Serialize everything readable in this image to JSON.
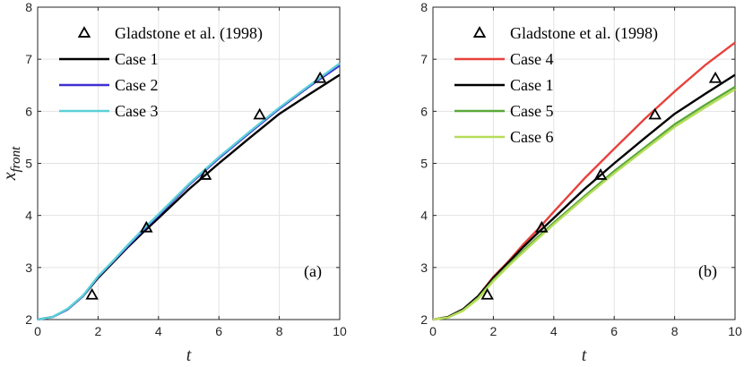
{
  "chart_data": [
    {
      "type": "line",
      "panel_label": "(a)",
      "xlabel": "t",
      "ylabel_base": "x",
      "ylabel_sub": "front",
      "xlim": [
        0,
        10
      ],
      "ylim": [
        2,
        8
      ],
      "xticks": [
        0,
        2,
        4,
        6,
        8,
        10
      ],
      "yticks": [
        2,
        3,
        4,
        5,
        6,
        7,
        8
      ],
      "grid": true,
      "legend_position": "top-left",
      "markers": {
        "name": "Gladstone et al. (1998)",
        "symbol": "triangle",
        "points": [
          [
            1.8,
            2.47
          ],
          [
            3.6,
            3.76
          ],
          [
            5.55,
            4.77
          ],
          [
            7.35,
            5.93
          ],
          [
            9.35,
            6.63
          ]
        ]
      },
      "series": [
        {
          "name": "Case 1",
          "color": "#000000",
          "points": [
            [
              0,
              2.0
            ],
            [
              0.5,
              2.05
            ],
            [
              1,
              2.2
            ],
            [
              1.5,
              2.45
            ],
            [
              2,
              2.8
            ],
            [
              2.5,
              3.1
            ],
            [
              3,
              3.4
            ],
            [
              3.5,
              3.68
            ],
            [
              4,
              3.95
            ],
            [
              5,
              4.5
            ],
            [
              6,
              5.0
            ],
            [
              7,
              5.48
            ],
            [
              8,
              5.95
            ],
            [
              9,
              6.33
            ],
            [
              10,
              6.7
            ]
          ]
        },
        {
          "name": "Case 2",
          "color": "#3f2fd0",
          "points": [
            [
              0,
              2.0
            ],
            [
              0.5,
              2.05
            ],
            [
              1,
              2.2
            ],
            [
              1.5,
              2.45
            ],
            [
              2,
              2.82
            ],
            [
              2.5,
              3.12
            ],
            [
              3,
              3.42
            ],
            [
              3.5,
              3.72
            ],
            [
              4,
              4.0
            ],
            [
              5,
              4.58
            ],
            [
              6,
              5.1
            ],
            [
              7,
              5.58
            ],
            [
              8,
              6.05
            ],
            [
              9,
              6.48
            ],
            [
              10,
              6.88
            ]
          ]
        },
        {
          "name": "Case 3",
          "color": "#5bd0d8",
          "points": [
            [
              0,
              2.0
            ],
            [
              0.5,
              2.05
            ],
            [
              1,
              2.21
            ],
            [
              1.5,
              2.46
            ],
            [
              2,
              2.83
            ],
            [
              2.5,
              3.13
            ],
            [
              3,
              3.44
            ],
            [
              3.5,
              3.74
            ],
            [
              4,
              4.02
            ],
            [
              5,
              4.6
            ],
            [
              6,
              5.12
            ],
            [
              7,
              5.6
            ],
            [
              8,
              6.07
            ],
            [
              9,
              6.5
            ],
            [
              10,
              6.92
            ]
          ]
        }
      ]
    },
    {
      "type": "line",
      "panel_label": "(b)",
      "xlabel": "t",
      "ylabel_base": "x",
      "ylabel_sub": "front",
      "xlim": [
        0,
        10
      ],
      "ylim": [
        2,
        8
      ],
      "xticks": [
        0,
        2,
        4,
        6,
        8,
        10
      ],
      "yticks": [
        2,
        3,
        4,
        5,
        6,
        7,
        8
      ],
      "grid": true,
      "legend_position": "top-left",
      "markers": {
        "name": "Gladstone et al. (1998)",
        "symbol": "triangle",
        "points": [
          [
            1.8,
            2.47
          ],
          [
            3.6,
            3.76
          ],
          [
            5.55,
            4.77
          ],
          [
            7.35,
            5.93
          ],
          [
            9.35,
            6.63
          ]
        ]
      },
      "series": [
        {
          "name": "Case 4",
          "color": "#e8413c",
          "points": [
            [
              0,
              2.0
            ],
            [
              0.5,
              2.05
            ],
            [
              1,
              2.2
            ],
            [
              1.5,
              2.45
            ],
            [
              2,
              2.82
            ],
            [
              2.5,
              3.12
            ],
            [
              3,
              3.45
            ],
            [
              3.5,
              3.75
            ],
            [
              4,
              4.07
            ],
            [
              5,
              4.7
            ],
            [
              6,
              5.28
            ],
            [
              7,
              5.85
            ],
            [
              8,
              6.38
            ],
            [
              9,
              6.88
            ],
            [
              10,
              7.32
            ]
          ]
        },
        {
          "name": "Case 1",
          "color": "#000000",
          "points": [
            [
              0,
              2.0
            ],
            [
              0.5,
              2.05
            ],
            [
              1,
              2.2
            ],
            [
              1.5,
              2.45
            ],
            [
              2,
              2.8
            ],
            [
              2.5,
              3.1
            ],
            [
              3,
              3.4
            ],
            [
              3.5,
              3.68
            ],
            [
              4,
              3.95
            ],
            [
              5,
              4.5
            ],
            [
              6,
              5.0
            ],
            [
              7,
              5.48
            ],
            [
              8,
              5.95
            ],
            [
              9,
              6.33
            ],
            [
              10,
              6.7
            ]
          ]
        },
        {
          "name": "Case 5",
          "color": "#5aa83a",
          "points": [
            [
              0,
              2.0
            ],
            [
              0.5,
              2.04
            ],
            [
              1,
              2.18
            ],
            [
              1.5,
              2.42
            ],
            [
              2,
              2.76
            ],
            [
              2.5,
              3.05
            ],
            [
              3,
              3.33
            ],
            [
              3.5,
              3.6
            ],
            [
              4,
              3.86
            ],
            [
              5,
              4.36
            ],
            [
              6,
              4.85
            ],
            [
              7,
              5.3
            ],
            [
              8,
              5.75
            ],
            [
              9,
              6.12
            ],
            [
              10,
              6.47
            ]
          ]
        },
        {
          "name": "Case 6",
          "color": "#b7dd5a",
          "points": [
            [
              0,
              2.0
            ],
            [
              0.5,
              2.04
            ],
            [
              1,
              2.17
            ],
            [
              1.5,
              2.4
            ],
            [
              2,
              2.74
            ],
            [
              2.5,
              3.03
            ],
            [
              3,
              3.3
            ],
            [
              3.5,
              3.57
            ],
            [
              4,
              3.83
            ],
            [
              5,
              4.33
            ],
            [
              6,
              4.81
            ],
            [
              7,
              5.26
            ],
            [
              8,
              5.7
            ],
            [
              9,
              6.07
            ],
            [
              10,
              6.42
            ]
          ]
        }
      ]
    }
  ]
}
